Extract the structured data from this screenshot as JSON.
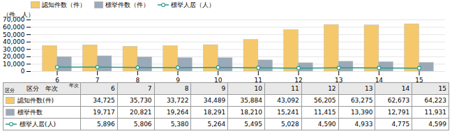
{
  "chart_data": {
    "type": "bar",
    "ylabel": "（件、人）",
    "categories": [
      "6",
      "7",
      "8",
      "9",
      "10",
      "11",
      "12",
      "13",
      "14",
      "15"
    ],
    "series": [
      {
        "name": "認知件数（件）",
        "type": "bar",
        "color": "#F5C96B",
        "values": [
          34725,
          35730,
          33722,
          34489,
          35884,
          43092,
          56205,
          63275,
          62673,
          64223
        ],
        "value_labels": [
          "34,725",
          "35,730",
          "33,722",
          "34,489",
          "35,884",
          "43,092",
          "56,205",
          "63,275",
          "62,673",
          "64,223"
        ]
      },
      {
        "name": "標挙件数（件）",
        "type": "bar",
        "color": "#9BAAB8",
        "values": [
          19717,
          20821,
          19264,
          18291,
          18210,
          15241,
          11415,
          13390,
          12791,
          11931
        ],
        "value_labels": [
          "19,717",
          "20,821",
          "19,264",
          "18,291",
          "18,210",
          "15,241",
          "11,415",
          "13,390",
          "12,791",
          "11,931"
        ]
      },
      {
        "name": "標挙人居（人）",
        "type": "line",
        "color": "#2A9B8A",
        "marker": "circle",
        "values": [
          5896,
          5806,
          5380,
          5264,
          5495,
          5028,
          4590,
          4933,
          4775,
          4599
        ],
        "value_labels": [
          "5,896",
          "5,806",
          "5,380",
          "5,264",
          "5,495",
          "5,028",
          "4,590",
          "4,933",
          "4,775",
          "4,599"
        ]
      }
    ],
    "ylim": [
      0,
      70000
    ],
    "yticks": [
      0,
      {
        "value": 10000,
        "label": "10,000"
      },
      {
        "value": 20000,
        "label": "20,000"
      },
      {
        "value": 30000,
        "label": "30,000"
      },
      {
        "value": 40000,
        "label": "40,000"
      },
      {
        "value": 50000,
        "label": "50,000"
      },
      {
        "value": 60000,
        "label": "60,000"
      },
      {
        "value": 70000,
        "label": "70,000"
      }
    ],
    "grid": true,
    "legend": "upper left",
    "table": {
      "header": "区分　年次",
      "corner_labels": [
        "年次",
        "区分"
      ],
      "row_labels": [
        "認知件数(件)",
        "標挙件数",
        "標挙人居(人)"
      ]
    }
  }
}
